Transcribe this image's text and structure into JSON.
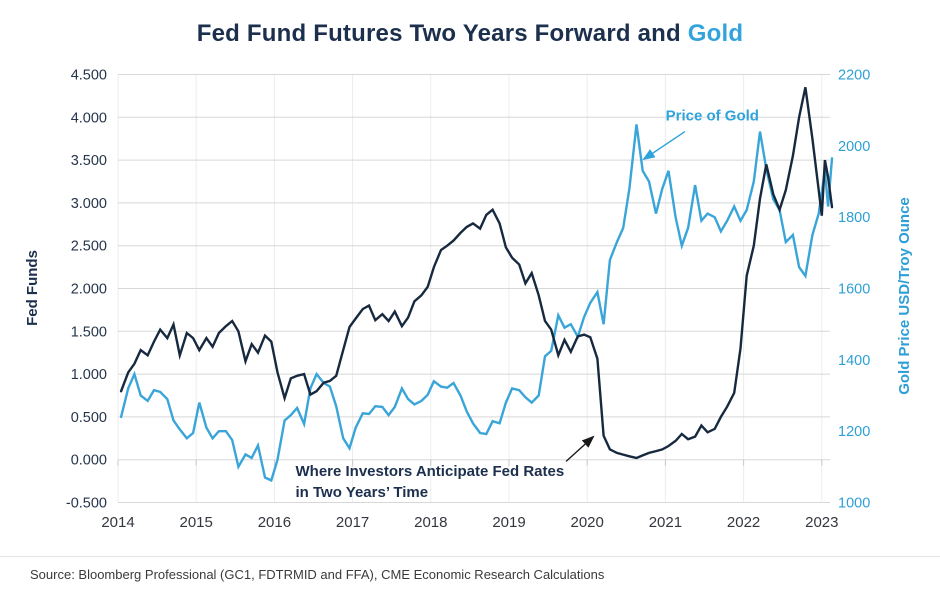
{
  "title": {
    "main": "Fed Fund Futures Two Years Forward and ",
    "highlight": "Gold"
  },
  "source": "Source: Bloomberg Professional (GC1, FDTRMID and FFA), CME Economic Research Calculations",
  "colors": {
    "navy_line": "#17293F",
    "blue_line": "#39A5D8",
    "title_navy": "#1C2F4D",
    "title_gold": "#33A3DB",
    "left_axis_text": "#26354B",
    "right_axis_text": "#2E9FD6",
    "year_text": "#33373D",
    "gridline": "#D8D8D8",
    "vertical_gridline": "#ECECEC",
    "tick_mark": "#C9C9C9",
    "annotation_arrow_dark": "#1A1A1A"
  },
  "chart_data": {
    "type": "line",
    "title": "Fed Fund Futures Two Years Forward and Gold",
    "x_domain": [
      2014,
      2023.25
    ],
    "x_ticks": [
      "2014",
      "2015",
      "2016",
      "2017",
      "2018",
      "2019",
      "2020",
      "2021",
      "2022",
      "2023"
    ],
    "x_tick_values": [
      2014,
      2015,
      2016,
      2017,
      2018,
      2019,
      2020,
      2021,
      2022,
      2023
    ],
    "grid": "horizontal-major",
    "left_axis": {
      "label": "Fed Funds",
      "min": -0.5,
      "max": 4.5,
      "ticks": [
        {
          "label": "4.500",
          "v": 4.5
        },
        {
          "label": "4.000",
          "v": 4.0
        },
        {
          "label": "3.500",
          "v": 3.5
        },
        {
          "label": "3.000",
          "v": 3.0
        },
        {
          "label": "2.500",
          "v": 2.5
        },
        {
          "label": "2.000",
          "v": 2.0
        },
        {
          "label": "1.500",
          "v": 1.5
        },
        {
          "label": "1.000",
          "v": 1.0
        },
        {
          "label": "0.500",
          "v": 0.5
        },
        {
          "label": "0.000",
          "v": 0.0
        },
        {
          "label": "-0.500",
          "v": -0.5
        }
      ]
    },
    "right_axis": {
      "label": "Gold Price USD/Troy Ounce",
      "min": 1000,
      "max": 2200,
      "ticks": [
        {
          "label": "2200",
          "v": 2200
        },
        {
          "label": "2000",
          "v": 2000
        },
        {
          "label": "1800",
          "v": 1800
        },
        {
          "label": "1600",
          "v": 1600
        },
        {
          "label": "1400",
          "v": 1400
        },
        {
          "label": "1200",
          "v": 1200
        },
        {
          "label": "1000",
          "v": 1000
        }
      ]
    },
    "series": [
      {
        "name": "Price of Gold",
        "axis": "right",
        "color": "#39A5D8",
        "points": [
          [
            2014.04,
            1240
          ],
          [
            2014.13,
            1320
          ],
          [
            2014.21,
            1360
          ],
          [
            2014.29,
            1300
          ],
          [
            2014.38,
            1285
          ],
          [
            2014.46,
            1315
          ],
          [
            2014.54,
            1310
          ],
          [
            2014.63,
            1290
          ],
          [
            2014.71,
            1230
          ],
          [
            2014.79,
            1205
          ],
          [
            2014.88,
            1180
          ],
          [
            2014.96,
            1195
          ],
          [
            2015.04,
            1280
          ],
          [
            2015.13,
            1210
          ],
          [
            2015.21,
            1180
          ],
          [
            2015.29,
            1200
          ],
          [
            2015.38,
            1200
          ],
          [
            2015.46,
            1175
          ],
          [
            2015.54,
            1100
          ],
          [
            2015.63,
            1135
          ],
          [
            2015.71,
            1125
          ],
          [
            2015.79,
            1160
          ],
          [
            2015.88,
            1070
          ],
          [
            2015.96,
            1062
          ],
          [
            2016.04,
            1120
          ],
          [
            2016.13,
            1230
          ],
          [
            2016.21,
            1245
          ],
          [
            2016.29,
            1265
          ],
          [
            2016.38,
            1220
          ],
          [
            2016.46,
            1320
          ],
          [
            2016.54,
            1360
          ],
          [
            2016.63,
            1335
          ],
          [
            2016.71,
            1325
          ],
          [
            2016.79,
            1270
          ],
          [
            2016.88,
            1180
          ],
          [
            2016.96,
            1152
          ],
          [
            2017.04,
            1210
          ],
          [
            2017.13,
            1250
          ],
          [
            2017.21,
            1248
          ],
          [
            2017.29,
            1270
          ],
          [
            2017.38,
            1268
          ],
          [
            2017.46,
            1245
          ],
          [
            2017.54,
            1268
          ],
          [
            2017.63,
            1320
          ],
          [
            2017.71,
            1290
          ],
          [
            2017.79,
            1275
          ],
          [
            2017.88,
            1285
          ],
          [
            2017.96,
            1302
          ],
          [
            2018.04,
            1340
          ],
          [
            2018.13,
            1325
          ],
          [
            2018.21,
            1322
          ],
          [
            2018.29,
            1335
          ],
          [
            2018.38,
            1300
          ],
          [
            2018.46,
            1255
          ],
          [
            2018.54,
            1222
          ],
          [
            2018.63,
            1195
          ],
          [
            2018.71,
            1192
          ],
          [
            2018.79,
            1228
          ],
          [
            2018.88,
            1222
          ],
          [
            2018.96,
            1280
          ],
          [
            2019.04,
            1320
          ],
          [
            2019.13,
            1315
          ],
          [
            2019.21,
            1295
          ],
          [
            2019.29,
            1280
          ],
          [
            2019.38,
            1300
          ],
          [
            2019.46,
            1410
          ],
          [
            2019.54,
            1425
          ],
          [
            2019.63,
            1525
          ],
          [
            2019.71,
            1490
          ],
          [
            2019.79,
            1500
          ],
          [
            2019.88,
            1465
          ],
          [
            2019.96,
            1520
          ],
          [
            2020.04,
            1560
          ],
          [
            2020.13,
            1590
          ],
          [
            2020.21,
            1500
          ],
          [
            2020.29,
            1680
          ],
          [
            2020.38,
            1730
          ],
          [
            2020.46,
            1770
          ],
          [
            2020.54,
            1880
          ],
          [
            2020.63,
            2060
          ],
          [
            2020.71,
            1930
          ],
          [
            2020.79,
            1900
          ],
          [
            2020.88,
            1810
          ],
          [
            2020.96,
            1880
          ],
          [
            2021.04,
            1930
          ],
          [
            2021.13,
            1800
          ],
          [
            2021.21,
            1720
          ],
          [
            2021.29,
            1770
          ],
          [
            2021.38,
            1890
          ],
          [
            2021.46,
            1790
          ],
          [
            2021.54,
            1810
          ],
          [
            2021.63,
            1800
          ],
          [
            2021.71,
            1760
          ],
          [
            2021.79,
            1790
          ],
          [
            2021.88,
            1830
          ],
          [
            2021.96,
            1790
          ],
          [
            2022.04,
            1820
          ],
          [
            2022.13,
            1900
          ],
          [
            2022.21,
            2040
          ],
          [
            2022.29,
            1935
          ],
          [
            2022.38,
            1850
          ],
          [
            2022.46,
            1820
          ],
          [
            2022.54,
            1730
          ],
          [
            2022.63,
            1750
          ],
          [
            2022.71,
            1660
          ],
          [
            2022.79,
            1635
          ],
          [
            2022.88,
            1750
          ],
          [
            2022.96,
            1810
          ],
          [
            2023.0,
            1870
          ],
          [
            2023.04,
            1930
          ],
          [
            2023.08,
            1830
          ],
          [
            2023.13,
            1965
          ]
        ]
      },
      {
        "name": "Fed Fund Futures Two Years Forward",
        "axis": "left",
        "color": "#17293F",
        "points": [
          [
            2014.04,
            0.8
          ],
          [
            2014.13,
            1.02
          ],
          [
            2014.21,
            1.12
          ],
          [
            2014.29,
            1.28
          ],
          [
            2014.38,
            1.22
          ],
          [
            2014.46,
            1.38
          ],
          [
            2014.54,
            1.52
          ],
          [
            2014.63,
            1.42
          ],
          [
            2014.71,
            1.58
          ],
          [
            2014.79,
            1.22
          ],
          [
            2014.88,
            1.48
          ],
          [
            2014.96,
            1.42
          ],
          [
            2015.04,
            1.28
          ],
          [
            2015.13,
            1.42
          ],
          [
            2015.21,
            1.32
          ],
          [
            2015.29,
            1.48
          ],
          [
            2015.38,
            1.56
          ],
          [
            2015.46,
            1.62
          ],
          [
            2015.54,
            1.5
          ],
          [
            2015.63,
            1.15
          ],
          [
            2015.71,
            1.35
          ],
          [
            2015.79,
            1.25
          ],
          [
            2015.88,
            1.45
          ],
          [
            2015.96,
            1.38
          ],
          [
            2016.04,
            1.02
          ],
          [
            2016.13,
            0.72
          ],
          [
            2016.21,
            0.95
          ],
          [
            2016.29,
            0.98
          ],
          [
            2016.38,
            1.0
          ],
          [
            2016.46,
            0.76
          ],
          [
            2016.54,
            0.8
          ],
          [
            2016.63,
            0.9
          ],
          [
            2016.71,
            0.92
          ],
          [
            2016.79,
            0.98
          ],
          [
            2016.88,
            1.28
          ],
          [
            2016.96,
            1.55
          ],
          [
            2017.04,
            1.65
          ],
          [
            2017.13,
            1.76
          ],
          [
            2017.21,
            1.8
          ],
          [
            2017.29,
            1.63
          ],
          [
            2017.38,
            1.7
          ],
          [
            2017.46,
            1.62
          ],
          [
            2017.54,
            1.73
          ],
          [
            2017.63,
            1.56
          ],
          [
            2017.71,
            1.66
          ],
          [
            2017.79,
            1.85
          ],
          [
            2017.88,
            1.92
          ],
          [
            2017.96,
            2.02
          ],
          [
            2018.04,
            2.25
          ],
          [
            2018.13,
            2.45
          ],
          [
            2018.21,
            2.5
          ],
          [
            2018.29,
            2.56
          ],
          [
            2018.38,
            2.65
          ],
          [
            2018.46,
            2.72
          ],
          [
            2018.54,
            2.76
          ],
          [
            2018.63,
            2.7
          ],
          [
            2018.71,
            2.86
          ],
          [
            2018.79,
            2.92
          ],
          [
            2018.88,
            2.76
          ],
          [
            2018.96,
            2.48
          ],
          [
            2019.04,
            2.36
          ],
          [
            2019.13,
            2.28
          ],
          [
            2019.21,
            2.06
          ],
          [
            2019.29,
            2.18
          ],
          [
            2019.38,
            1.92
          ],
          [
            2019.46,
            1.62
          ],
          [
            2019.54,
            1.52
          ],
          [
            2019.63,
            1.22
          ],
          [
            2019.71,
            1.4
          ],
          [
            2019.79,
            1.26
          ],
          [
            2019.88,
            1.44
          ],
          [
            2019.96,
            1.46
          ],
          [
            2020.04,
            1.43
          ],
          [
            2020.13,
            1.18
          ],
          [
            2020.21,
            0.28
          ],
          [
            2020.29,
            0.12
          ],
          [
            2020.38,
            0.08
          ],
          [
            2020.46,
            0.06
          ],
          [
            2020.54,
            0.04
          ],
          [
            2020.63,
            0.02
          ],
          [
            2020.71,
            0.05
          ],
          [
            2020.79,
            0.08
          ],
          [
            2020.88,
            0.1
          ],
          [
            2020.96,
            0.12
          ],
          [
            2021.04,
            0.16
          ],
          [
            2021.13,
            0.22
          ],
          [
            2021.21,
            0.3
          ],
          [
            2021.29,
            0.24
          ],
          [
            2021.38,
            0.27
          ],
          [
            2021.46,
            0.4
          ],
          [
            2021.54,
            0.32
          ],
          [
            2021.63,
            0.36
          ],
          [
            2021.71,
            0.5
          ],
          [
            2021.79,
            0.62
          ],
          [
            2021.88,
            0.78
          ],
          [
            2021.96,
            1.3
          ],
          [
            2022.04,
            2.15
          ],
          [
            2022.13,
            2.5
          ],
          [
            2022.21,
            3.05
          ],
          [
            2022.29,
            3.45
          ],
          [
            2022.38,
            3.1
          ],
          [
            2022.46,
            2.92
          ],
          [
            2022.54,
            3.15
          ],
          [
            2022.63,
            3.55
          ],
          [
            2022.71,
            4.0
          ],
          [
            2022.79,
            4.35
          ],
          [
            2022.88,
            3.75
          ],
          [
            2022.96,
            3.15
          ],
          [
            2023.0,
            2.85
          ],
          [
            2023.04,
            3.5
          ],
          [
            2023.08,
            3.3
          ],
          [
            2023.13,
            2.95
          ]
        ]
      }
    ],
    "annotations": [
      {
        "id": "price-of-gold",
        "text": "Price of Gold",
        "color": "#2FA3DB",
        "axis": "right",
        "align": "center",
        "label_pos": {
          "x": 2021.6,
          "y": 2105
        },
        "arrow": {
          "from": {
            "x": 2021.25,
            "y": 2040
          },
          "to": {
            "x": 2020.72,
            "y": 1962
          },
          "color": "#2FA3DB"
        }
      },
      {
        "id": "fed-anticipation",
        "lines": [
          "Where Investors Anticipate Fed Rates",
          "in Two Years’ Time"
        ],
        "color": "#1C2F4D",
        "axis": "left",
        "align": "left",
        "label_pos": {
          "x": 2016.27,
          "y": -0.05
        },
        "arrow": {
          "from": {
            "x": 2019.73,
            "y": -0.02
          },
          "to": {
            "x": 2020.08,
            "y": 0.27
          },
          "color": "#1A1A1A"
        }
      }
    ],
    "legend": "none"
  }
}
